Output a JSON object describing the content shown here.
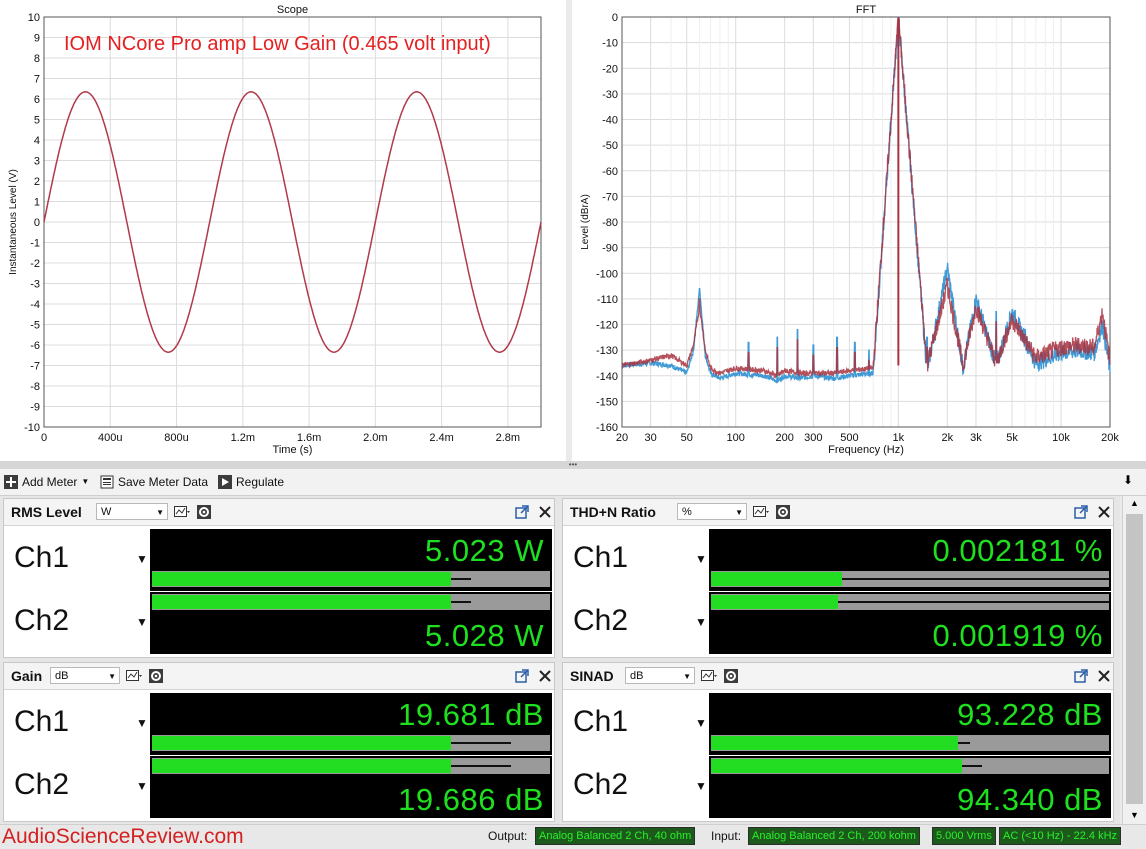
{
  "scope": {
    "title": "Scope",
    "annotation": "IOM NCore Pro amp Low Gain (0.465 volt input)",
    "ylabel": "Instantaneous Level (V)",
    "xlabel": "Time (s)",
    "yticks": [
      "10",
      "9",
      "8",
      "7",
      "6",
      "5",
      "4",
      "3",
      "2",
      "1",
      "0",
      "-1",
      "-2",
      "-3",
      "-4",
      "-5",
      "-6",
      "-7",
      "-8",
      "-9",
      "-10"
    ],
    "xticks": [
      "0",
      "400u",
      "800u",
      "1.2m",
      "1.6m",
      "2.0m",
      "2.4m",
      "2.8m"
    ]
  },
  "fft": {
    "title": "FFT",
    "ylabel": "Level (dBrA)",
    "xlabel": "Frequency (Hz)",
    "yticks": [
      "0",
      "-10",
      "-20",
      "-30",
      "-40",
      "-50",
      "-60",
      "-70",
      "-80",
      "-90",
      "-100",
      "-110",
      "-120",
      "-130",
      "-140",
      "-150",
      "-160"
    ],
    "xticks": [
      "20",
      "30",
      "50",
      "100",
      "200",
      "300",
      "500",
      "1k",
      "2k",
      "3k",
      "5k",
      "10k",
      "20k"
    ]
  },
  "chart_data": [
    {
      "type": "line",
      "title": "Scope",
      "xlabel": "Time (s)",
      "ylabel": "Instantaneous Level (V)",
      "xlim": [
        0,
        0.003
      ],
      "ylim": [
        -10,
        10
      ],
      "grid": true,
      "series": [
        {
          "amplitude": 6.35,
          "frequency_hz": 1000,
          "phase": 0,
          "color": "#b03a48"
        }
      ]
    },
    {
      "type": "line",
      "title": "FFT",
      "xlabel": "Frequency (Hz)",
      "ylabel": "Level (dBrA)",
      "xscale": "log",
      "xlim": [
        20,
        20000
      ],
      "ylim": [
        -160,
        0
      ],
      "grid": true,
      "series": [
        {
          "color": "#3f9ad6",
          "x": [
            20,
            30,
            40,
            50,
            55,
            60,
            65,
            70,
            80,
            100,
            150,
            180,
            200,
            250,
            300,
            400,
            500,
            700,
            1000,
            1500,
            2000,
            2500,
            3000,
            4000,
            5000,
            7000,
            10000,
            13000,
            16000,
            18000,
            20000
          ],
          "y": [
            -136,
            -135,
            -136,
            -139,
            -130,
            -106,
            -132,
            -139,
            -141,
            -139,
            -140,
            -142,
            -140,
            -141,
            -140,
            -141,
            -140,
            -139,
            0,
            -138,
            -98,
            -137,
            -110,
            -136,
            -115,
            -135,
            -131,
            -130,
            -131,
            -120,
            -138
          ]
        },
        {
          "color": "#a83240",
          "x": [
            20,
            30,
            40,
            50,
            55,
            60,
            65,
            70,
            80,
            100,
            150,
            180,
            200,
            250,
            300,
            400,
            500,
            700,
            1000,
            1500,
            2000,
            2500,
            3000,
            4000,
            5000,
            7000,
            10000,
            13000,
            16000,
            18000,
            20000
          ],
          "y": [
            -136,
            -134,
            -132,
            -136,
            -128,
            -113,
            -130,
            -137,
            -139,
            -137,
            -138,
            -140,
            -138,
            -139,
            -139,
            -139,
            -138,
            -137,
            0,
            -136,
            -105,
            -136,
            -113,
            -135,
            -118,
            -133,
            -129,
            -128,
            -129,
            -115,
            -135
          ]
        }
      ],
      "peaks": [
        {
          "x": 60,
          "y": -106
        },
        {
          "x": 120,
          "y": -127
        },
        {
          "x": 180,
          "y": -125
        },
        {
          "x": 240,
          "y": -122
        },
        {
          "x": 300,
          "y": -128
        },
        {
          "x": 420,
          "y": -125
        },
        {
          "x": 540,
          "y": -127
        },
        {
          "x": 660,
          "y": -130
        },
        {
          "x": 780,
          "y": -126
        },
        {
          "x": 900,
          "y": -124
        },
        {
          "x": 1000,
          "y": 0
        },
        {
          "x": 1140,
          "y": -127
        },
        {
          "x": 1500,
          "y": -125
        },
        {
          "x": 2000,
          "y": -98
        },
        {
          "x": 3000,
          "y": -110
        },
        {
          "x": 4000,
          "y": -115
        },
        {
          "x": 5000,
          "y": -118
        },
        {
          "x": 6000,
          "y": -122
        }
      ]
    }
  ],
  "toolbar": {
    "add_meter": "Add Meter",
    "save_meter_data": "Save Meter Data",
    "regulate": "Regulate"
  },
  "meters": [
    {
      "title": "RMS Level",
      "unit": "W",
      "ch1_label": "Ch1",
      "ch2_label": "Ch2",
      "ch1_value": "5.023",
      "ch2_value": "5.028",
      "value_unit": "W",
      "ch1_bar": 0.75,
      "ch2_bar": 0.75,
      "ch1_peak": 0.8,
      "ch2_peak": 0.8
    },
    {
      "title": "THD+N Ratio",
      "unit": "%",
      "ch1_label": "Ch1",
      "ch2_label": "Ch2",
      "ch1_value": "0.002181",
      "ch2_value": "0.001919",
      "value_unit": "%",
      "ch1_bar": 0.33,
      "ch2_bar": 0.32,
      "ch1_peak": 1.0,
      "ch2_peak": 1.0
    },
    {
      "title": "Gain",
      "unit": "dB",
      "ch1_label": "Ch1",
      "ch2_label": "Ch2",
      "ch1_value": "19.681",
      "ch2_value": "19.686",
      "value_unit": "dB",
      "ch1_bar": 0.75,
      "ch2_bar": 0.75,
      "ch1_peak": 0.9,
      "ch2_peak": 0.9
    },
    {
      "title": "SINAD",
      "unit": "dB",
      "ch1_label": "Ch1",
      "ch2_label": "Ch2",
      "ch1_value": "93.228",
      "ch2_value": "94.340",
      "value_unit": "dB",
      "ch1_bar": 0.62,
      "ch2_bar": 0.63,
      "ch1_peak": 0.65,
      "ch2_peak": 0.68
    }
  ],
  "status": {
    "watermark": "AudioScienceReview.com",
    "output_label": "Output:",
    "output_value": "Analog Balanced 2 Ch, 40 ohm",
    "input_label": "Input:",
    "input_value": "Analog Balanced 2 Ch, 200 kohm",
    "level_value": "5.000 Vrms",
    "bandwidth_value": "AC (<10 Hz) - 22.4 kHz"
  }
}
